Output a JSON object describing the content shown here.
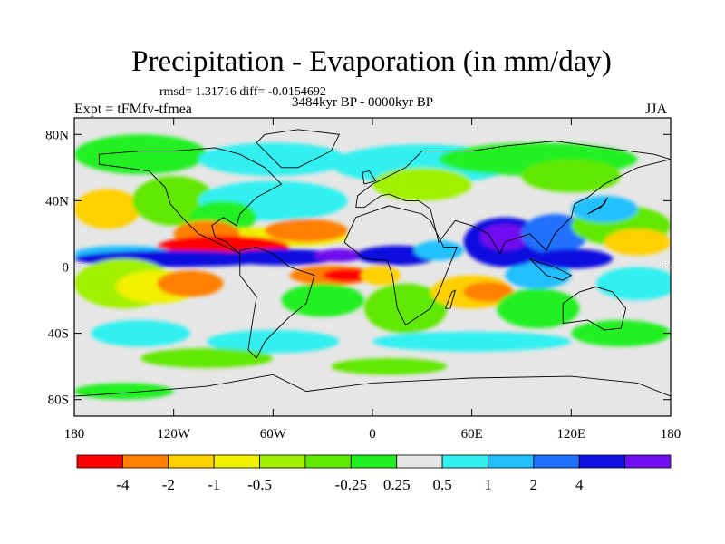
{
  "title": "Precipitation - Evaporation (in mm/day)",
  "stats": "rmsd= 1.31716 diff= -0.0154692",
  "period": "3484kyr BP - 0000kyr BP",
  "experiment": "Expt = tFMfv-tfmea",
  "season": "JJA",
  "axes": {
    "y_ticks": [
      {
        "value": 80,
        "label": "80N"
      },
      {
        "value": 40,
        "label": "40N"
      },
      {
        "value": 0,
        "label": "0"
      },
      {
        "value": -40,
        "label": "40S"
      },
      {
        "value": -80,
        "label": "80S"
      }
    ],
    "x_ticks": [
      {
        "value": -180,
        "label": "180"
      },
      {
        "value": -120,
        "label": "120W"
      },
      {
        "value": -60,
        "label": "60W"
      },
      {
        "value": 0,
        "label": "0"
      },
      {
        "value": 60,
        "label": "60E"
      },
      {
        "value": 120,
        "label": "120E"
      },
      {
        "value": 180,
        "label": "180"
      }
    ],
    "lon_range": [
      -180,
      180
    ],
    "lat_range": [
      -90,
      90
    ]
  },
  "colorbar": {
    "colors": [
      "#ff0000",
      "#ff8000",
      "#ffd000",
      "#f0f000",
      "#a0f000",
      "#60e800",
      "#20f020",
      "#e6e6e6",
      "#30f0f0",
      "#20c0ff",
      "#2070ff",
      "#1010e0",
      "#7010f0"
    ],
    "labels": [
      {
        "after_box": 1,
        "text": "-4"
      },
      {
        "after_box": 2,
        "text": "-2"
      },
      {
        "after_box": 3,
        "text": "-1"
      },
      {
        "after_box": 4,
        "text": "-0.5"
      },
      {
        "after_box": 6,
        "text": "-0.25"
      },
      {
        "after_box": 7,
        "text": "0.25"
      },
      {
        "after_box": 8,
        "text": "0.5"
      },
      {
        "after_box": 9,
        "text": "1"
      },
      {
        "after_box": 10,
        "text": "2"
      },
      {
        "after_box": 11,
        "text": "4"
      }
    ]
  },
  "fields": {
    "background": "#e6e6e6",
    "patches": [
      {
        "lon": -140,
        "lat": 68,
        "rx": 40,
        "ry": 12,
        "color": "#20f020",
        "desc": "arctic alaska moist"
      },
      {
        "lon": -60,
        "lat": 65,
        "rx": 45,
        "ry": 10,
        "color": "#30f0f0"
      },
      {
        "lon": 30,
        "lat": 62,
        "rx": 55,
        "ry": 12,
        "color": "#30f0f0"
      },
      {
        "lon": 100,
        "lat": 65,
        "rx": 60,
        "ry": 10,
        "color": "#20f020"
      },
      {
        "lon": 120,
        "lat": 55,
        "rx": 30,
        "ry": 10,
        "color": "#60e800"
      },
      {
        "lon": 30,
        "lat": 50,
        "rx": 30,
        "ry": 10,
        "color": "#a0f000"
      },
      {
        "lon": -160,
        "lat": 35,
        "rx": 20,
        "ry": 12,
        "color": "#ffd000"
      },
      {
        "lon": -120,
        "lat": 40,
        "rx": 25,
        "ry": 15,
        "color": "#60e800"
      },
      {
        "lon": -60,
        "lat": 40,
        "rx": 45,
        "ry": 12,
        "color": "#30f0f0"
      },
      {
        "lon": -90,
        "lat": 30,
        "rx": 20,
        "ry": 10,
        "color": "#20f020"
      },
      {
        "lon": -60,
        "lat": 18,
        "rx": 45,
        "ry": 6,
        "color": "#f0f000"
      },
      {
        "lon": -40,
        "lat": 22,
        "rx": 25,
        "ry": 7,
        "color": "#ff8000"
      },
      {
        "lon": -100,
        "lat": 20,
        "rx": 20,
        "ry": 8,
        "color": "#ff8000"
      },
      {
        "lon": -90,
        "lat": 12,
        "rx": 40,
        "ry": 7,
        "color": "#ff0000"
      },
      {
        "lon": -150,
        "lat": 8,
        "rx": 30,
        "ry": 5,
        "color": "#20c0ff"
      },
      {
        "lon": -120,
        "lat": 5,
        "rx": 60,
        "ry": 5,
        "color": "#1010e0"
      },
      {
        "lon": -55,
        "lat": 6,
        "rx": 35,
        "ry": 5,
        "color": "#1010e0"
      },
      {
        "lon": -20,
        "lat": 7,
        "rx": 15,
        "ry": 4,
        "color": "#7010f0"
      },
      {
        "lon": 15,
        "lat": 7,
        "rx": 25,
        "ry": 6,
        "color": "#1010e0"
      },
      {
        "lon": 40,
        "lat": 10,
        "rx": 15,
        "ry": 6,
        "color": "#20c0ff"
      },
      {
        "lon": -150,
        "lat": -10,
        "rx": 30,
        "ry": 15,
        "color": "#a0f000"
      },
      {
        "lon": -130,
        "lat": -12,
        "rx": 25,
        "ry": 10,
        "color": "#f0f000"
      },
      {
        "lon": -110,
        "lat": -10,
        "rx": 20,
        "ry": 8,
        "color": "#ff8000"
      },
      {
        "lon": -25,
        "lat": -5,
        "rx": 25,
        "ry": 6,
        "color": "#ff8000"
      },
      {
        "lon": -15,
        "lat": -5,
        "rx": 15,
        "ry": 4,
        "color": "#ff0000"
      },
      {
        "lon": 5,
        "lat": -5,
        "rx": 12,
        "ry": 6,
        "color": "#ffd000"
      },
      {
        "lon": -30,
        "lat": -20,
        "rx": 25,
        "ry": 10,
        "color": "#20f020"
      },
      {
        "lon": 20,
        "lat": -25,
        "rx": 25,
        "ry": 15,
        "color": "#60e800"
      },
      {
        "lon": 60,
        "lat": -15,
        "rx": 25,
        "ry": 10,
        "color": "#ffd000"
      },
      {
        "lon": 70,
        "lat": -15,
        "rx": 15,
        "ry": 6,
        "color": "#ff8000"
      },
      {
        "lon": 100,
        "lat": -25,
        "rx": 25,
        "ry": 12,
        "color": "#20f020"
      },
      {
        "lon": 100,
        "lat": -5,
        "rx": 20,
        "ry": 8,
        "color": "#20c0ff"
      },
      {
        "lon": 160,
        "lat": -10,
        "rx": 25,
        "ry": 10,
        "color": "#30f0f0"
      },
      {
        "lon": 80,
        "lat": 15,
        "rx": 25,
        "ry": 15,
        "color": "#1010e0"
      },
      {
        "lon": 80,
        "lat": 18,
        "rx": 15,
        "ry": 8,
        "color": "#7010f0"
      },
      {
        "lon": 110,
        "lat": 20,
        "rx": 20,
        "ry": 12,
        "color": "#2070ff"
      },
      {
        "lon": 120,
        "lat": 5,
        "rx": 25,
        "ry": 6,
        "color": "#1010e0"
      },
      {
        "lon": 150,
        "lat": 25,
        "rx": 30,
        "ry": 12,
        "color": "#60e800"
      },
      {
        "lon": 160,
        "lat": 15,
        "rx": 20,
        "ry": 8,
        "color": "#ffd000"
      },
      {
        "lon": 140,
        "lat": 35,
        "rx": 20,
        "ry": 8,
        "color": "#20c0ff"
      },
      {
        "lon": -140,
        "lat": -40,
        "rx": 30,
        "ry": 8,
        "color": "#30f0f0"
      },
      {
        "lon": -60,
        "lat": -45,
        "rx": 40,
        "ry": 7,
        "color": "#30f0f0"
      },
      {
        "lon": 60,
        "lat": -45,
        "rx": 60,
        "ry": 6,
        "color": "#30f0f0"
      },
      {
        "lon": 150,
        "lat": -40,
        "rx": 30,
        "ry": 8,
        "color": "#20f020"
      },
      {
        "lon": -100,
        "lat": -55,
        "rx": 40,
        "ry": 6,
        "color": "#60e800"
      },
      {
        "lon": 10,
        "lat": -60,
        "rx": 35,
        "ry": 5,
        "color": "#60e800"
      },
      {
        "lon": -150,
        "lat": -75,
        "rx": 30,
        "ry": 5,
        "color": "#20f020"
      }
    ]
  },
  "coastlines": [
    {
      "name": "north-america",
      "pts": [
        [
          -165,
          68
        ],
        [
          -140,
          70
        ],
        [
          -120,
          70
        ],
        [
          -95,
          72
        ],
        [
          -80,
          68
        ],
        [
          -65,
          60
        ],
        [
          -55,
          50
        ],
        [
          -70,
          42
        ],
        [
          -80,
          32
        ],
        [
          -82,
          25
        ],
        [
          -90,
          30
        ],
        [
          -97,
          25
        ],
        [
          -95,
          18
        ],
        [
          -88,
          15
        ],
        [
          -80,
          8
        ],
        [
          -88,
          12
        ],
        [
          -105,
          20
        ],
        [
          -115,
          30
        ],
        [
          -122,
          38
        ],
        [
          -125,
          48
        ],
        [
          -135,
          58
        ],
        [
          -150,
          60
        ],
        [
          -165,
          62
        ],
        [
          -165,
          68
        ]
      ]
    },
    {
      "name": "south-america",
      "pts": [
        [
          -80,
          10
        ],
        [
          -70,
          12
        ],
        [
          -60,
          8
        ],
        [
          -50,
          0
        ],
        [
          -35,
          -5
        ],
        [
          -40,
          -22
        ],
        [
          -50,
          -30
        ],
        [
          -58,
          -38
        ],
        [
          -65,
          -45
        ],
        [
          -70,
          -55
        ],
        [
          -75,
          -50
        ],
        [
          -72,
          -30
        ],
        [
          -70,
          -18
        ],
        [
          -80,
          -5
        ],
        [
          -80,
          10
        ]
      ]
    },
    {
      "name": "greenland",
      "pts": [
        [
          -55,
          60
        ],
        [
          -45,
          60
        ],
        [
          -25,
          70
        ],
        [
          -20,
          80
        ],
        [
          -45,
          83
        ],
        [
          -65,
          80
        ],
        [
          -70,
          75
        ],
        [
          -55,
          60
        ]
      ]
    },
    {
      "name": "africa",
      "pts": [
        [
          -17,
          15
        ],
        [
          -10,
          30
        ],
        [
          10,
          37
        ],
        [
          30,
          32
        ],
        [
          35,
          28
        ],
        [
          43,
          12
        ],
        [
          51,
          12
        ],
        [
          40,
          -15
        ],
        [
          35,
          -25
        ],
        [
          20,
          -35
        ],
        [
          15,
          -25
        ],
        [
          12,
          -5
        ],
        [
          9,
          4
        ],
        [
          -5,
          5
        ],
        [
          -17,
          15
        ]
      ]
    },
    {
      "name": "eurasia",
      "pts": [
        [
          -10,
          36
        ],
        [
          -9,
          43
        ],
        [
          0,
          50
        ],
        [
          10,
          55
        ],
        [
          20,
          60
        ],
        [
          30,
          70
        ],
        [
          60,
          70
        ],
        [
          80,
          73
        ],
        [
          110,
          76
        ],
        [
          140,
          72
        ],
        [
          170,
          68
        ],
        [
          180,
          65
        ],
        [
          160,
          60
        ],
        [
          140,
          50
        ],
        [
          130,
          42
        ],
        [
          122,
          38
        ],
        [
          120,
          30
        ],
        [
          110,
          20
        ],
        [
          105,
          10
        ],
        [
          100,
          15
        ],
        [
          95,
          20
        ],
        [
          80,
          15
        ],
        [
          77,
          8
        ],
        [
          70,
          20
        ],
        [
          60,
          25
        ],
        [
          50,
          28
        ],
        [
          40,
          15
        ],
        [
          35,
          35
        ],
        [
          28,
          40
        ],
        [
          20,
          40
        ],
        [
          10,
          44
        ],
        [
          5,
          43
        ],
        [
          -5,
          36
        ],
        [
          -10,
          36
        ]
      ]
    },
    {
      "name": "australia",
      "pts": [
        [
          115,
          -22
        ],
        [
          115,
          -34
        ],
        [
          130,
          -32
        ],
        [
          140,
          -38
        ],
        [
          150,
          -37
        ],
        [
          153,
          -25
        ],
        [
          145,
          -15
        ],
        [
          135,
          -12
        ],
        [
          125,
          -15
        ],
        [
          115,
          -22
        ]
      ]
    },
    {
      "name": "antarctica",
      "pts": [
        [
          -180,
          -78
        ],
        [
          -150,
          -76
        ],
        [
          -100,
          -72
        ],
        [
          -60,
          -65
        ],
        [
          -40,
          -75
        ],
        [
          0,
          -70
        ],
        [
          60,
          -67
        ],
        [
          120,
          -66
        ],
        [
          160,
          -70
        ],
        [
          180,
          -78
        ]
      ]
    },
    {
      "name": "uk",
      "pts": [
        [
          -5,
          50
        ],
        [
          2,
          52
        ],
        [
          -2,
          58
        ],
        [
          -6,
          57
        ],
        [
          -5,
          50
        ]
      ]
    },
    {
      "name": "madagascar",
      "pts": [
        [
          44,
          -25
        ],
        [
          48,
          -15
        ],
        [
          50,
          -14
        ],
        [
          47,
          -25
        ],
        [
          44,
          -25
        ]
      ]
    },
    {
      "name": "indonesia",
      "pts": [
        [
          95,
          5
        ],
        [
          105,
          -5
        ],
        [
          115,
          -8
        ],
        [
          120,
          -5
        ],
        [
          110,
          0
        ],
        [
          100,
          3
        ],
        [
          95,
          5
        ]
      ]
    },
    {
      "name": "japan",
      "pts": [
        [
          130,
          32
        ],
        [
          135,
          35
        ],
        [
          140,
          38
        ],
        [
          142,
          42
        ],
        [
          138,
          36
        ],
        [
          130,
          32
        ]
      ]
    }
  ]
}
